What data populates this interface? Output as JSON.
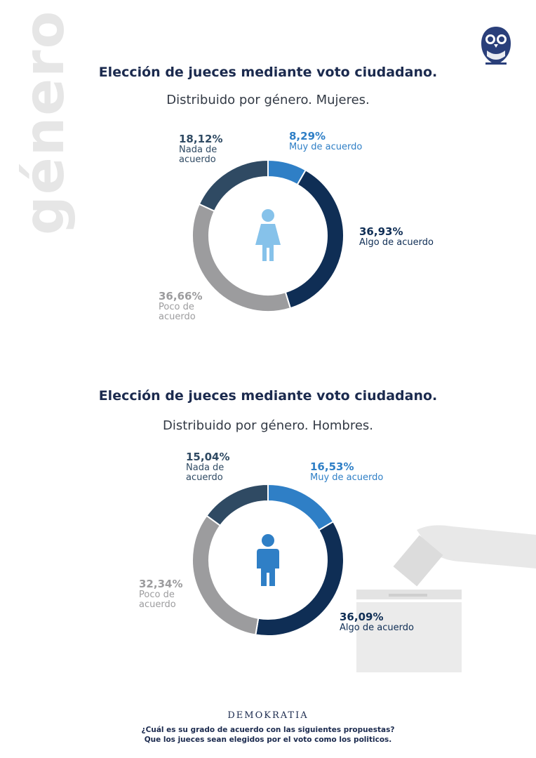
{
  "side_word": "género",
  "colors": {
    "muy": "#2f7fc6",
    "algo": "#0f2e55",
    "poco": "#9c9c9e",
    "nada": "#2f4a63",
    "icon_women": "#86c2ea",
    "icon_men": "#2f7fc6"
  },
  "chart_data": [
    {
      "type": "pie",
      "title": "Elección de jueces mediante voto ciudadano.",
      "subtitle": "Distribuido por género. Mujeres.",
      "icon": "woman-icon",
      "series": [
        {
          "name": "Muy de acuerdo",
          "value": 8.29,
          "label": "8,29%",
          "color": "#2f7fc6"
        },
        {
          "name": "Algo de acuerdo",
          "value": 36.93,
          "label": "36,93%",
          "color": "#0f2e55"
        },
        {
          "name": "Poco de acuerdo",
          "value": 36.66,
          "label": "36,66%",
          "color": "#9c9c9e"
        },
        {
          "name": "Nada de acuerdo",
          "value": 18.12,
          "label": "18,12%",
          "color": "#2f4a63"
        }
      ]
    },
    {
      "type": "pie",
      "title": "Elección de jueces mediante voto ciudadano.",
      "subtitle": "Distribuido por género. Hombres.",
      "icon": "man-icon",
      "series": [
        {
          "name": "Muy de acuerdo",
          "value": 16.53,
          "label": "16,53%",
          "color": "#2f7fc6"
        },
        {
          "name": "Algo de acuerdo",
          "value": 36.09,
          "label": "36,09%",
          "color": "#0f2e55"
        },
        {
          "name": "Poco de acuerdo",
          "value": 32.34,
          "label": "32,34%",
          "color": "#9c9c9e"
        },
        {
          "name": "Nada de acuerdo",
          "value": 15.04,
          "label": "15,04%",
          "color": "#2f4a63"
        }
      ]
    }
  ],
  "labels": {
    "women": {
      "muy": {
        "pct": "8,29%",
        "txt": "Muy de acuerdo"
      },
      "algo": {
        "pct": "36,93%",
        "txt": "Algo de acuerdo"
      },
      "poco": {
        "pct": "36,66%",
        "txt": "Poco de\nacuerdo"
      },
      "nada": {
        "pct": "18,12%",
        "txt": "Nada de\nacuerdo"
      }
    },
    "men": {
      "muy": {
        "pct": "16,53%",
        "txt": "Muy de acuerdo"
      },
      "algo": {
        "pct": "36,09%",
        "txt": "Algo de acuerdo"
      },
      "poco": {
        "pct": "32,34%",
        "txt": "Poco de\nacuerdo"
      },
      "nada": {
        "pct": "15,04%",
        "txt": "Nada de\nacuerdo"
      }
    }
  },
  "footer": {
    "brand": "DEMOKRATIA",
    "question_1": "¿Cuál es su grado de acuerdo con las siguientes propuestas?",
    "question_2": "Que los jueces sean elegidos por el voto como los politicos."
  }
}
